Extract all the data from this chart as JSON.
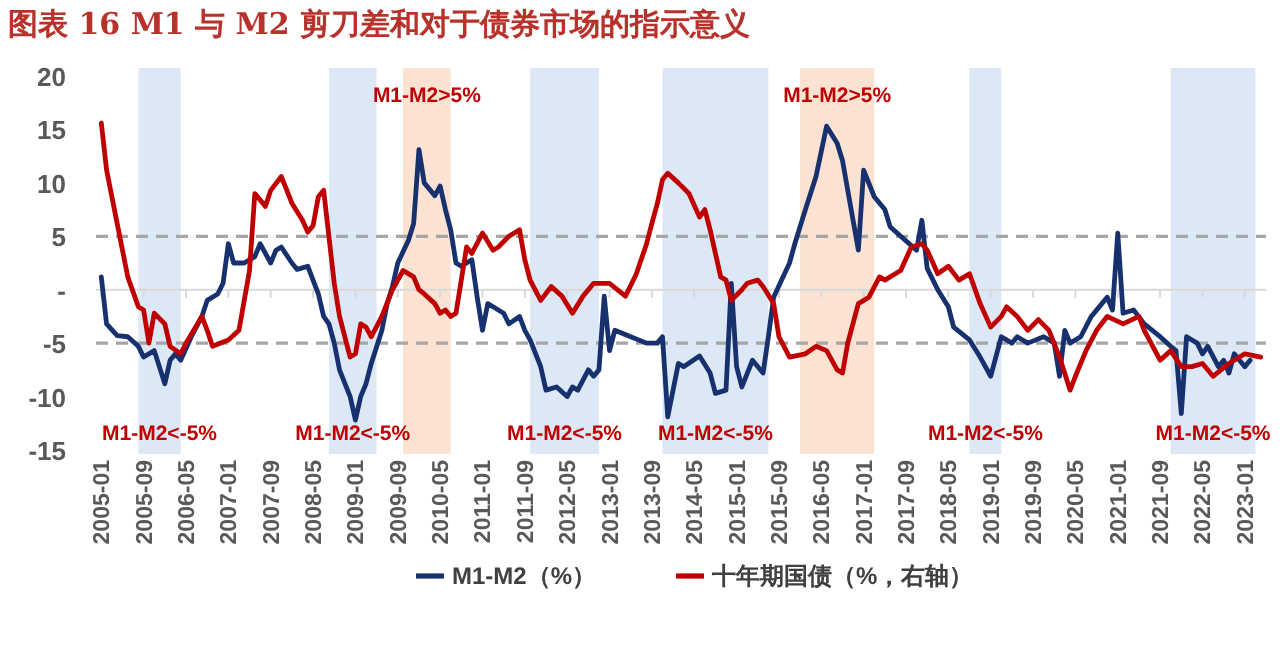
{
  "chart_data": {
    "type": "line",
    "title": "图表 16   M1 与 M2 剪刀差和对于债券市场的指示意义",
    "xlim": [
      "2004-12",
      "2023-05"
    ],
    "ylim": [
      -15,
      20
    ],
    "xticks": [
      "2005-01",
      "2005-09",
      "2006-05",
      "2007-01",
      "2007-09",
      "2008-05",
      "2009-01",
      "2009-09",
      "2010-05",
      "2011-01",
      "2011-09",
      "2012-05",
      "2013-01",
      "2013-09",
      "2014-05",
      "2015-01",
      "2015-09",
      "2016-05",
      "2017-01",
      "2017-09",
      "2018-05",
      "2019-01",
      "2019-09",
      "2020-05",
      "2021-01",
      "2021-09",
      "2022-05",
      "2023-01"
    ],
    "yticks": [
      20,
      15,
      10,
      5,
      {
        "value": 0,
        "label": "-"
      },
      -5,
      -10,
      -15
    ],
    "legend": "bottom",
    "line_style": "solid",
    "series": [
      {
        "name": "M1-M2（%）",
        "color": "#17306e",
        "x": [
          "2005-01",
          "2005-02",
          "2005-04",
          "2005-06",
          "2005-08",
          "2005-09",
          "2005-11",
          "2006-01",
          "2006-02",
          "2006-03",
          "2006-04",
          "2006-06",
          "2006-08",
          "2006-09",
          "2006-11",
          "2006-12",
          "2007-01",
          "2007-02",
          "2007-04",
          "2007-06",
          "2007-07",
          "2007-09",
          "2007-10",
          "2007-11",
          "2008-01",
          "2008-02",
          "2008-04",
          "2008-05",
          "2008-06",
          "2008-07",
          "2008-08",
          "2008-09",
          "2008-10",
          "2008-12",
          "2009-01",
          "2009-02",
          "2009-03",
          "2009-04",
          "2009-06",
          "2009-07",
          "2009-08",
          "2009-09",
          "2009-11",
          "2009-12",
          "2010-01",
          "2010-02",
          "2010-04",
          "2010-05",
          "2010-06",
          "2010-07",
          "2010-08",
          "2010-09",
          "2010-11",
          "2010-12",
          "2011-01",
          "2011-02",
          "2011-03",
          "2011-05",
          "2011-06",
          "2011-08",
          "2011-09",
          "2011-10",
          "2011-12",
          "2012-01",
          "2012-03",
          "2012-05",
          "2012-06",
          "2012-07",
          "2012-09",
          "2012-10",
          "2012-11",
          "2012-12",
          "2013-01",
          "2013-02",
          "2013-05",
          "2013-08",
          "2013-10",
          "2013-11",
          "2013-12",
          "2014-02",
          "2014-03",
          "2014-06",
          "2014-08",
          "2014-09",
          "2014-11",
          "2014-12",
          "2015-01",
          "2015-02",
          "2015-04",
          "2015-06",
          "2015-07",
          "2015-08",
          "2015-11",
          "2015-12",
          "2016-02",
          "2016-04",
          "2016-06",
          "2016-08",
          "2016-09",
          "2016-10",
          "2016-12",
          "2017-01",
          "2017-03",
          "2017-05",
          "2017-06",
          "2017-08",
          "2017-11",
          "2017-12",
          "2018-01",
          "2018-03",
          "2018-05",
          "2018-06",
          "2018-09",
          "2018-11",
          "2019-01",
          "2019-03",
          "2019-05",
          "2019-06",
          "2019-08",
          "2019-11",
          "2020-01",
          "2020-02",
          "2020-03",
          "2020-04",
          "2020-06",
          "2020-08",
          "2020-10",
          "2020-11",
          "2020-12",
          "2021-01",
          "2021-02",
          "2021-04",
          "2021-06",
          "2021-09",
          "2021-11",
          "2021-12",
          "2022-01",
          "2022-02",
          "2022-04",
          "2022-05",
          "2022-06",
          "2022-08",
          "2022-09",
          "2022-10",
          "2022-11",
          "2023-01",
          "2023-02"
        ],
        "values": [
          1.2,
          -3.2,
          -4.3,
          -4.4,
          -5.3,
          -6.3,
          -5.7,
          -8.8,
          -6.6,
          -6,
          -6.6,
          -4.4,
          -2.5,
          -1,
          -0.4,
          0.6,
          4.3,
          2.5,
          2.5,
          3.1,
          4.3,
          2.5,
          3.7,
          4,
          2.5,
          1.9,
          2.2,
          0.9,
          -0.4,
          -2.5,
          -3.2,
          -5,
          -7.5,
          -10,
          -12.2,
          -10,
          -8.8,
          -6.9,
          -3.8,
          -1.3,
          0.3,
          2.5,
          4.6,
          6.2,
          13.1,
          10,
          8.8,
          9.7,
          7.5,
          5.6,
          2.5,
          2.2,
          2.8,
          -0.7,
          -3.8,
          -1.3,
          -1.6,
          -2.2,
          -3.2,
          -2.5,
          -3.8,
          -4.7,
          -7.2,
          -9.4,
          -9.1,
          -10,
          -9.1,
          -9.4,
          -7.5,
          -8.1,
          -7.5,
          -0.6,
          -5.7,
          -3.8,
          -4.4,
          -5,
          -5,
          -4.4,
          -11.9,
          -6.9,
          -7.2,
          -6.2,
          -7.8,
          -9.7,
          -9.4,
          0.6,
          -7.2,
          -9.1,
          -6.6,
          -7.8,
          -4.4,
          -0.7,
          2.5,
          4.3,
          7.5,
          10.6,
          15.3,
          13.7,
          12.1,
          9.3,
          3.7,
          11.2,
          8.7,
          7.5,
          5.9,
          5,
          3.7,
          6.5,
          2,
          0,
          -1.6,
          -3.5,
          -4.7,
          -6.3,
          -8.1,
          -4.4,
          -5,
          -4.4,
          -5,
          -4.4,
          -5,
          -8.1,
          -3.8,
          -5,
          -4.4,
          -2.5,
          -1.3,
          -0.7,
          -1.9,
          5.3,
          -2.2,
          -1.9,
          -3.2,
          -4.4,
          -5.3,
          -5.7,
          -11.6,
          -4.4,
          -5,
          -6,
          -5.3,
          -7.2,
          -6.6,
          -7.8,
          -6,
          -7.2,
          -6.6
        ]
      },
      {
        "name": "十年期国债（%，右轴）",
        "color": "#c00000",
        "x": [
          "2005-01",
          "2005-02",
          "2005-04",
          "2005-05",
          "2005-06",
          "2005-08",
          "2005-09",
          "2005-10",
          "2005-11",
          "2006-01",
          "2006-02",
          "2006-04",
          "2006-05",
          "2006-08",
          "2006-09",
          "2006-10",
          "2007-01",
          "2007-03",
          "2007-05",
          "2007-06",
          "2007-08",
          "2007-09",
          "2007-11",
          "2008-01",
          "2008-03",
          "2008-04",
          "2008-05",
          "2008-06",
          "2008-07",
          "2008-09",
          "2008-10",
          "2008-12",
          "2009-01",
          "2009-02",
          "2009-03",
          "2009-04",
          "2009-06",
          "2009-08",
          "2009-10",
          "2009-12",
          "2010-01",
          "2010-02",
          "2010-04",
          "2010-05",
          "2010-06",
          "2010-07",
          "2010-08",
          "2010-10",
          "2010-11",
          "2011-01",
          "2011-03",
          "2011-04",
          "2011-06",
          "2011-08",
          "2011-09",
          "2011-10",
          "2011-12",
          "2012-02",
          "2012-04",
          "2012-06",
          "2012-08",
          "2012-10",
          "2013-01",
          "2013-04",
          "2013-06",
          "2013-08",
          "2013-09",
          "2013-10",
          "2013-11",
          "2013-12",
          "2014-02",
          "2014-04",
          "2014-06",
          "2014-07",
          "2014-08",
          "2014-10",
          "2014-11",
          "2014-12",
          "2015-02",
          "2015-03",
          "2015-05",
          "2015-06",
          "2015-08",
          "2015-09",
          "2015-11",
          "2016-02",
          "2016-04",
          "2016-06",
          "2016-08",
          "2016-09",
          "2016-10",
          "2016-12",
          "2017-02",
          "2017-04",
          "2017-05",
          "2017-08",
          "2017-10",
          "2017-12",
          "2018-01",
          "2018-03",
          "2018-05",
          "2018-07",
          "2018-09",
          "2018-11",
          "2019-01",
          "2019-03",
          "2019-04",
          "2019-06",
          "2019-08",
          "2019-10",
          "2019-12",
          "2020-02",
          "2020-04",
          "2020-05",
          "2020-07",
          "2020-09",
          "2020-11",
          "2021-02",
          "2021-05",
          "2021-06",
          "2021-09",
          "2021-11",
          "2022-01",
          "2022-03",
          "2022-05",
          "2022-07",
          "2022-10",
          "2023-01",
          "2023-04"
        ],
        "values": [
          15.6,
          11.2,
          6.2,
          3.7,
          1.2,
          -1.6,
          -1.9,
          -5,
          -2.2,
          -3.2,
          -5.3,
          -6,
          -5,
          -2.5,
          -3.8,
          -5.3,
          -4.7,
          -3.8,
          1.8,
          9,
          7.8,
          9.3,
          10.6,
          8.1,
          6.5,
          5.4,
          6,
          8.7,
          9.3,
          0.6,
          -2.5,
          -6.3,
          -6,
          -3.2,
          -3.5,
          -4.4,
          -2.5,
          0,
          1.8,
          1.2,
          0,
          -0.4,
          -1.3,
          -2.2,
          -1.9,
          -2.5,
          -2.2,
          4,
          3.4,
          5.3,
          3.7,
          4,
          5,
          5.6,
          2.8,
          0.9,
          -1,
          0.3,
          -0.6,
          -2.2,
          -0.6,
          0.6,
          0.6,
          -0.6,
          1.4,
          4.3,
          6.2,
          8,
          10.3,
          10.9,
          10,
          9,
          6.8,
          7.5,
          5.6,
          1.2,
          0.9,
          -1,
          0,
          0.6,
          0.9,
          0.3,
          -1.3,
          -4.4,
          -6.3,
          -6,
          -5.3,
          -5.7,
          -7.5,
          -7.8,
          -5,
          -1.3,
          -0.7,
          1.2,
          0.9,
          1.8,
          4,
          4.3,
          3.7,
          1.5,
          2.2,
          0.9,
          1.5,
          -1.3,
          -3.5,
          -2.5,
          -1.6,
          -2.5,
          -3.8,
          -2.8,
          -3.8,
          -6.3,
          -9.4,
          -8.1,
          -5.7,
          -3.8,
          -2.5,
          -3.2,
          -2.5,
          -3.8,
          -6.6,
          -5.7,
          -7.2,
          -7.2,
          -6.9,
          -8.1,
          -6.9,
          -6,
          -6.3
        ]
      }
    ],
    "ref_lines": [
      {
        "axis": "y",
        "value": 0,
        "color": "#d9d9d9",
        "line_style": "solid"
      },
      {
        "axis": "y",
        "value": 5,
        "color": "#a6a6a6",
        "line_style": "dashed"
      },
      {
        "axis": "y",
        "value": -5,
        "color": "#a6a6a6",
        "line_style": "dashed"
      }
    ],
    "bands": [
      {
        "axis": "x",
        "from": "2005-08",
        "to": "2006-04",
        "color": "#dce8f6",
        "label": "M1-M2<-5%"
      },
      {
        "axis": "x",
        "from": "2008-08",
        "to": "2009-05",
        "color": "#dce8f6",
        "label": "M1-M2<-5%"
      },
      {
        "axis": "x",
        "from": "2009-10",
        "to": "2010-07",
        "color": "#fbe2d2",
        "label": "M1-M2>5%"
      },
      {
        "axis": "x",
        "from": "2011-10",
        "to": "2012-11",
        "color": "#dce8f6",
        "label": "M1-M2<-5%"
      },
      {
        "axis": "x",
        "from": "2013-11",
        "to": "2015-07",
        "color": "#dce8f6",
        "label": "M1-M2<-5%"
      },
      {
        "axis": "x",
        "from": "2016-01",
        "to": "2017-03",
        "color": "#fbe2d2",
        "label": "M1-M2>5%"
      },
      {
        "axis": "x",
        "from": "2018-09",
        "to": "2019-03",
        "color": "#dce8f6",
        "label": "M1-M2<-5%"
      },
      {
        "axis": "x",
        "from": "2021-11",
        "to": "2023-03",
        "color": "#dce8f6",
        "label": "M1-M2<-5%"
      }
    ]
  }
}
